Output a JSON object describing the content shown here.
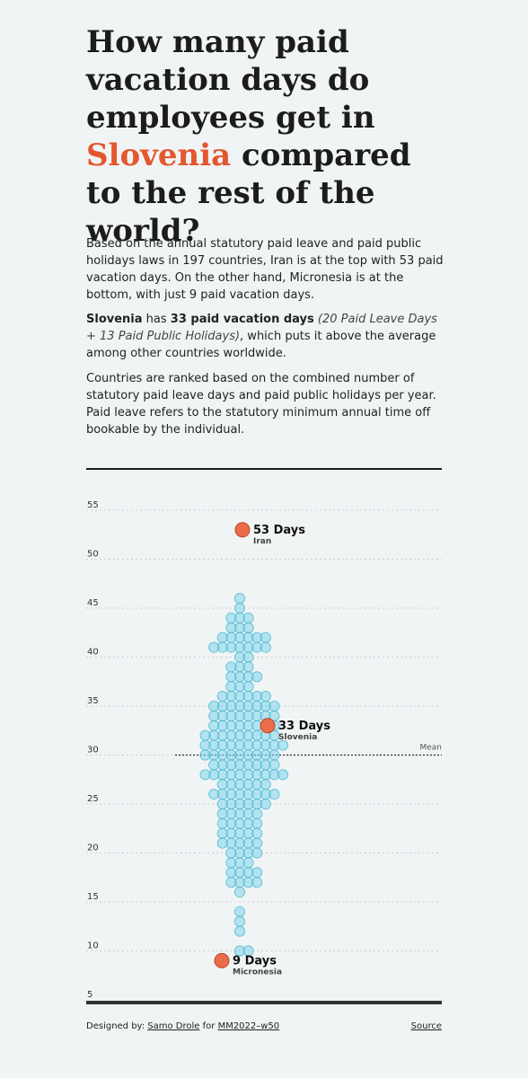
{
  "header": {
    "title_before": "How many paid vacation days do employees get in ",
    "title_highlight": "Slovenia",
    "title_after": " compared to the rest of the world?"
  },
  "intro": {
    "p1": "Based on the annual statutory paid leave and paid public holidays laws in 197 countries, Iran is at the top with 53 paid vacation days. On the other hand, Micronesia is at the bottom, with just 9 paid vacation days.",
    "p2_country": "Slovenia",
    "p2_has": " has ",
    "p2_days": "33 paid vacation days",
    "p2_space": " ",
    "p2_breakdown": "(20 Paid Leave Days + 13 Paid Public Holidays)",
    "p2_rest": ", which puts it above the average among other countries worldwide.",
    "p3": "Countries are ranked based on the combined number of statutory paid leave days and paid public holidays per year. Paid leave refers to the statutory minimum annual time off bookable by the individual."
  },
  "chart_data": {
    "type": "scatter",
    "ylim": [
      5,
      55
    ],
    "yticks": [
      5,
      10,
      15,
      20,
      25,
      30,
      35,
      40,
      45,
      50,
      55
    ],
    "mean": 30,
    "mean_label": "Mean",
    "grid": true,
    "colors": {
      "dot": "#7fd6ea",
      "dot_stroke": "#3fb3cf",
      "highlight": "#ea6d4a",
      "highlight_stroke": "#c1432a"
    },
    "values": [
      46,
      45,
      44,
      44,
      44,
      43,
      43,
      43,
      42,
      42,
      42,
      42,
      42,
      42,
      41,
      41,
      41,
      41,
      41,
      41,
      41,
      40,
      40,
      39,
      39,
      39,
      38,
      38,
      38,
      38,
      37,
      37,
      37,
      36,
      36,
      36,
      36,
      36,
      36,
      35,
      35,
      35,
      35,
      35,
      35,
      35,
      35,
      34,
      34,
      34,
      34,
      34,
      34,
      34,
      34,
      33,
      33,
      33,
      33,
      33,
      33,
      33,
      33,
      32,
      32,
      32,
      32,
      32,
      32,
      32,
      32,
      32,
      31,
      31,
      31,
      31,
      31,
      31,
      31,
      31,
      31,
      31,
      30,
      30,
      30,
      30,
      30,
      30,
      30,
      30,
      30,
      29,
      29,
      29,
      29,
      29,
      29,
      29,
      29,
      28,
      28,
      28,
      28,
      28,
      28,
      28,
      28,
      28,
      28,
      27,
      27,
      27,
      27,
      27,
      27,
      26,
      26,
      26,
      26,
      26,
      26,
      26,
      26,
      25,
      25,
      25,
      25,
      25,
      25,
      24,
      24,
      24,
      24,
      24,
      23,
      23,
      23,
      23,
      23,
      22,
      22,
      22,
      22,
      22,
      21,
      21,
      21,
      21,
      21,
      20,
      20,
      20,
      20,
      19,
      19,
      19,
      18,
      18,
      18,
      18,
      17,
      17,
      17,
      17,
      16,
      14,
      13,
      12,
      10,
      10
    ],
    "highlights": [
      {
        "name": "Iran",
        "value": 53,
        "label": "53 Days"
      },
      {
        "name": "Slovenia",
        "value": 33,
        "label": "33 Days"
      },
      {
        "name": "Micronesia",
        "value": 9,
        "label": "9 Days"
      }
    ]
  },
  "footer": {
    "designed_by": "Designed by: ",
    "designer": "Samo Drole",
    "for": " for ",
    "project": "MM2022–w50",
    "source": "Source"
  }
}
